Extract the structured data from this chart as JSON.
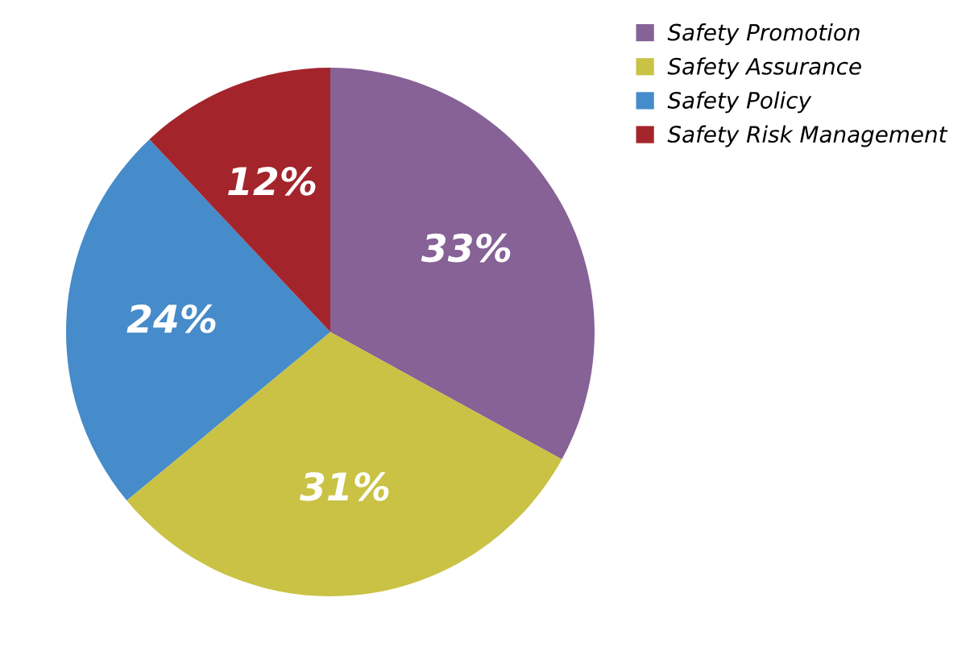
{
  "chart_data": {
    "type": "pie",
    "categories": [
      "Safety Promotion",
      "Safety Assurance",
      "Safety Policy",
      "Safety Risk Management"
    ],
    "values": [
      33,
      31,
      24,
      12
    ],
    "colors": [
      "#866296",
      "#c9c244",
      "#468bca",
      "#a3252b"
    ],
    "value_labels": [
      "33%",
      "31%",
      "24%",
      "12%"
    ],
    "legend": "top right"
  }
}
